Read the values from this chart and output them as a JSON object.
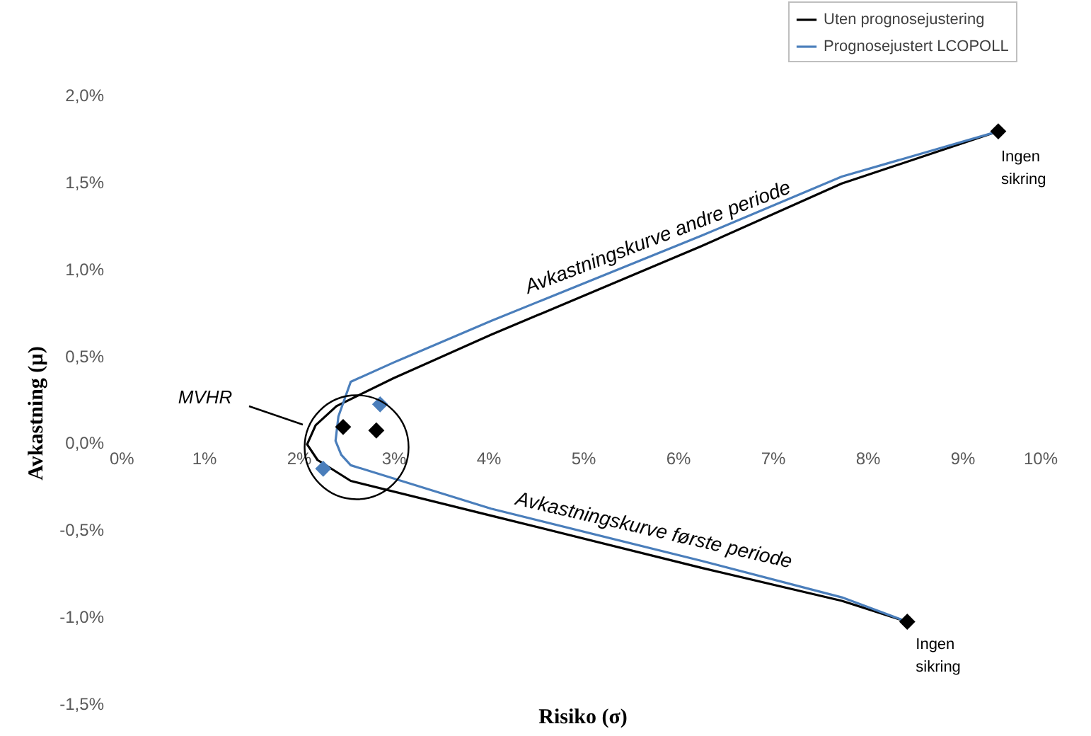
{
  "chart_data": {
    "type": "line",
    "xlabel": "Risiko (σ)",
    "ylabel": "Avkastning (µ)",
    "xlim": [
      0,
      10
    ],
    "xticks": [
      {
        "value": 0,
        "label": "0%"
      },
      {
        "value": 1,
        "label": "1%"
      },
      {
        "value": 2,
        "label": "2%"
      },
      {
        "value": 3,
        "label": "3%"
      },
      {
        "value": 4,
        "label": "4%"
      },
      {
        "value": 5,
        "label": "5%"
      },
      {
        "value": 6,
        "label": "6%"
      },
      {
        "value": 7,
        "label": "7%"
      },
      {
        "value": 8,
        "label": "8%"
      },
      {
        "value": 9,
        "label": "9%"
      },
      {
        "value": 10,
        "label": "10%"
      }
    ],
    "ylim": [
      -1.5,
      2.0
    ],
    "yticks": [
      {
        "value": -1.5,
        "label": "-1,5%"
      },
      {
        "value": -1.0,
        "label": "-1,0%"
      },
      {
        "value": -0.5,
        "label": "-0,5%"
      },
      {
        "value": 0,
        "label": "0,0%"
      },
      {
        "value": 0.5,
        "label": "0,5%"
      },
      {
        "value": 1.0,
        "label": "1,0%"
      },
      {
        "value": 1.5,
        "label": "1,5%"
      },
      {
        "value": 2.0,
        "label": "2,0%"
      }
    ],
    "grid": false,
    "legend": "top right",
    "line_style": "solid",
    "series": [
      {
        "name": "Uten prognosejustering",
        "marker": "none",
        "color": "#000000",
        "x": [
          9.38,
          7.73,
          6.25,
          4.03,
          3.0,
          2.4,
          2.18,
          2.09,
          2.2,
          2.55,
          4.03,
          6.25,
          7.73,
          8.42
        ],
        "values": [
          1.79,
          1.49,
          1.13,
          0.62,
          0.37,
          0.21,
          0.1,
          -0.01,
          -0.1,
          -0.22,
          -0.42,
          -0.72,
          -0.91,
          -1.03
        ]
      },
      {
        "name": "Prognosejustert LCOPOLL",
        "marker": "none",
        "color": "#4a7ebb",
        "x": [
          9.38,
          7.73,
          6.25,
          4.03,
          3.0,
          2.55,
          2.42,
          2.39,
          2.45,
          2.55,
          4.03,
          6.25,
          7.73,
          8.42
        ],
        "values": [
          1.79,
          1.53,
          1.19,
          0.7,
          0.46,
          0.35,
          0.15,
          0.01,
          -0.07,
          -0.13,
          -0.38,
          -0.68,
          -0.89,
          -1.03
        ]
      },
      {
        "type": "scatter",
        "marker": "diamond",
        "color": "#4a7ebb",
        "x": [
          2.86,
          2.26
        ],
        "values": [
          0.22,
          -0.15
        ]
      },
      {
        "type": "scatter",
        "marker": "diamond",
        "color": "#000000",
        "x": [
          9.38,
          8.42,
          2.47,
          2.82
        ],
        "values": [
          1.79,
          -1.03,
          0.09,
          0.07
        ]
      }
    ],
    "annotations": [
      "MVHR",
      "Avkastningskurve andre periode",
      "Avkastningskurve første periode",
      {
        "text": "Ingen\nsikring",
        "x": 9.38,
        "y": 1.79
      },
      {
        "text": "Ingen\nsikring",
        "x": 8.42,
        "y": -1.03
      }
    ]
  }
}
